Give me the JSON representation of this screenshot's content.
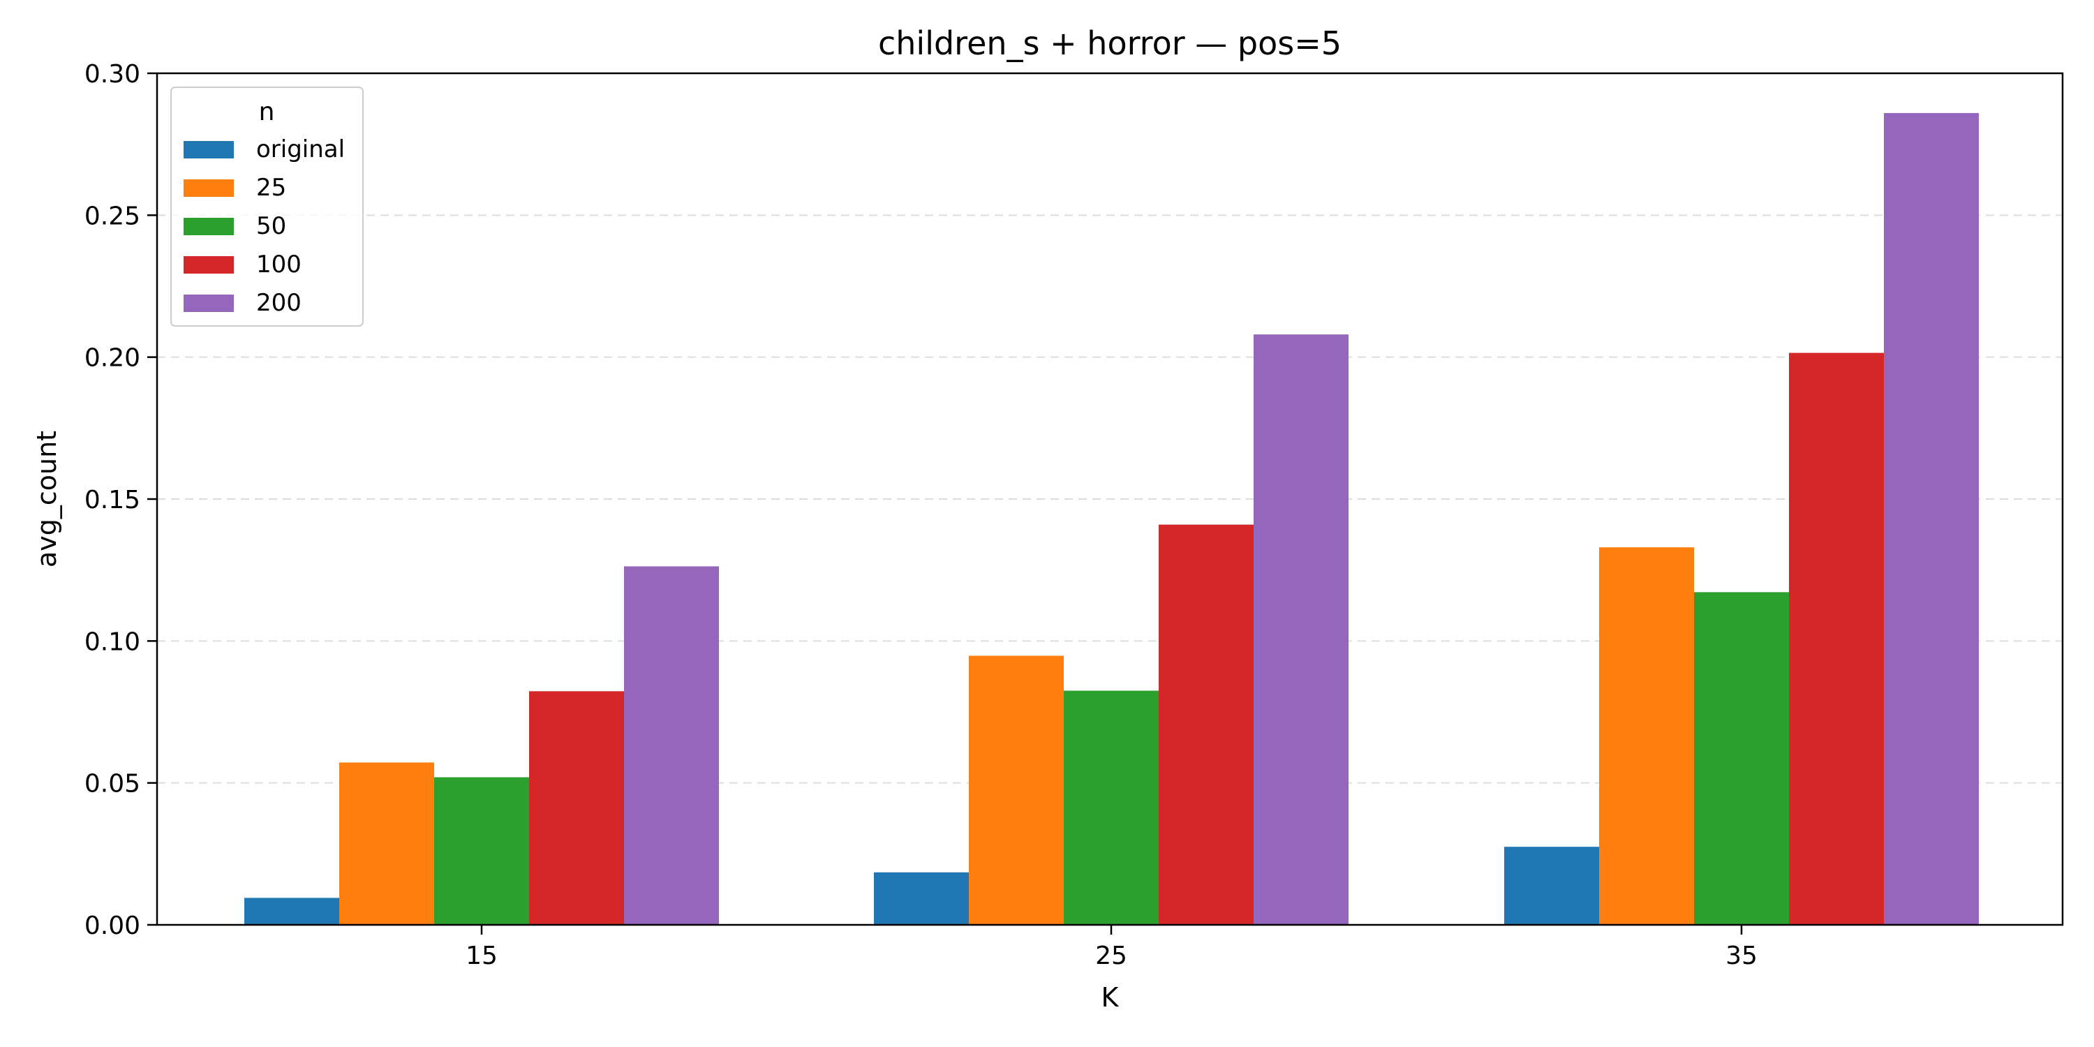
{
  "chart_data": {
    "type": "bar",
    "title": "children_s + horror — pos=5",
    "xlabel": "K",
    "ylabel": "avg_count",
    "categories": [
      "15",
      "25",
      "35"
    ],
    "ylim": [
      0,
      0.3
    ],
    "yticks": [
      0.0,
      0.05,
      0.1,
      0.15,
      0.2,
      0.25,
      0.3
    ],
    "ytick_labels": [
      "0.00",
      "0.05",
      "0.10",
      "0.15",
      "0.20",
      "0.25",
      "0.30"
    ],
    "grid": "y-dashed",
    "legend": {
      "title": "n",
      "placement": "top-left"
    },
    "series": [
      {
        "name": "original",
        "color": "#1f77b4",
        "values": [
          0.0095,
          0.0185,
          0.0275
        ]
      },
      {
        "name": "25",
        "color": "#ff7f0e",
        "values": [
          0.0572,
          0.0948,
          0.133
        ]
      },
      {
        "name": "50",
        "color": "#2ca02c",
        "values": [
          0.052,
          0.0825,
          0.1172
        ]
      },
      {
        "name": "100",
        "color": "#d62728",
        "values": [
          0.0823,
          0.141,
          0.2015
        ]
      },
      {
        "name": "200",
        "color": "#9467bd",
        "values": [
          0.1263,
          0.208,
          0.286
        ]
      }
    ]
  }
}
